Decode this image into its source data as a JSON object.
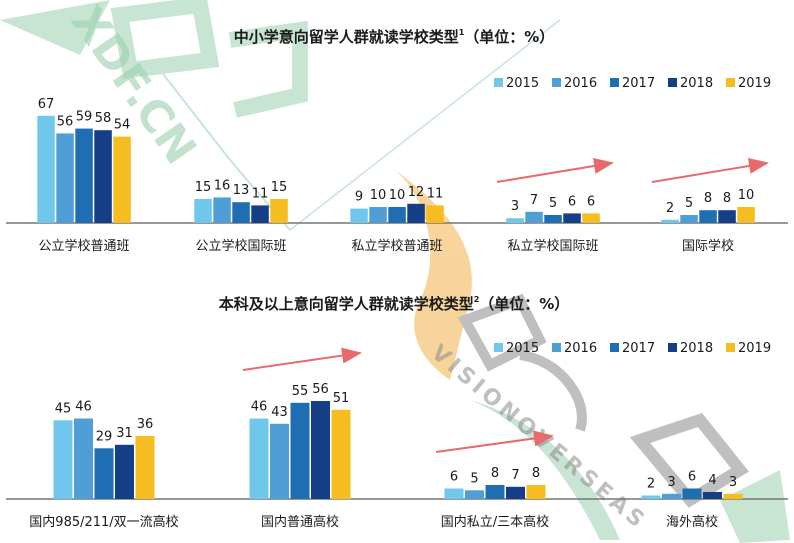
{
  "colors": {
    "series": [
      "#6fc8ec",
      "#4f9fd6",
      "#1f6db3",
      "#143f86",
      "#f5bd1f"
    ],
    "axis": "#777777",
    "trend_arrow": "#e86b6b",
    "watermark_green": "#9bd0ae",
    "watermark_gray": "#8c8c8c",
    "watermark_orange": "#f2b24c"
  },
  "watermark": {
    "left_text": "XDF.CN",
    "right_text": "VISIONOVERSEAS"
  },
  "chart_data": [
    {
      "type": "bar",
      "title": "中小学意向留学人群就读学校类型",
      "title_superscript": "1",
      "title_unit": "（单位：%）",
      "legend_position": "top-right",
      "grid": false,
      "ylim": [
        0,
        70
      ],
      "categories": [
        "公立学校普通班",
        "公立学校国际班",
        "私立学校普通班",
        "私立学校国际班",
        "国际学校"
      ],
      "series": [
        {
          "name": "2015",
          "values": [
            67,
            15,
            9,
            3,
            2
          ]
        },
        {
          "name": "2016",
          "values": [
            56,
            16,
            10,
            7,
            5
          ]
        },
        {
          "name": "2017",
          "values": [
            59,
            13,
            10,
            5,
            8
          ]
        },
        {
          "name": "2018",
          "values": [
            58,
            11,
            12,
            6,
            8
          ]
        },
        {
          "name": "2019",
          "values": [
            54,
            15,
            11,
            6,
            10
          ]
        }
      ],
      "trend_arrows_over": [
        "私立学校国际班",
        "国际学校"
      ]
    },
    {
      "type": "bar",
      "title": "本科及以上意向留学人群就读学校类型",
      "title_superscript": "2",
      "title_unit": "（单位：%）",
      "legend_position": "top-right",
      "grid": false,
      "ylim": [
        0,
        70
      ],
      "categories": [
        "国内985/211/双一流高校",
        "国内普通高校",
        "国内私立/三本高校",
        "海外高校"
      ],
      "series": [
        {
          "name": "2015",
          "values": [
            45,
            46,
            6,
            2
          ]
        },
        {
          "name": "2016",
          "values": [
            46,
            43,
            5,
            3
          ]
        },
        {
          "name": "2017",
          "values": [
            29,
            55,
            8,
            6
          ]
        },
        {
          "name": "2018",
          "values": [
            31,
            56,
            7,
            4
          ]
        },
        {
          "name": "2019",
          "values": [
            36,
            51,
            8,
            3
          ]
        }
      ],
      "trend_arrows_over": [
        "国内普通高校",
        "国内私立/三本高校"
      ]
    }
  ]
}
